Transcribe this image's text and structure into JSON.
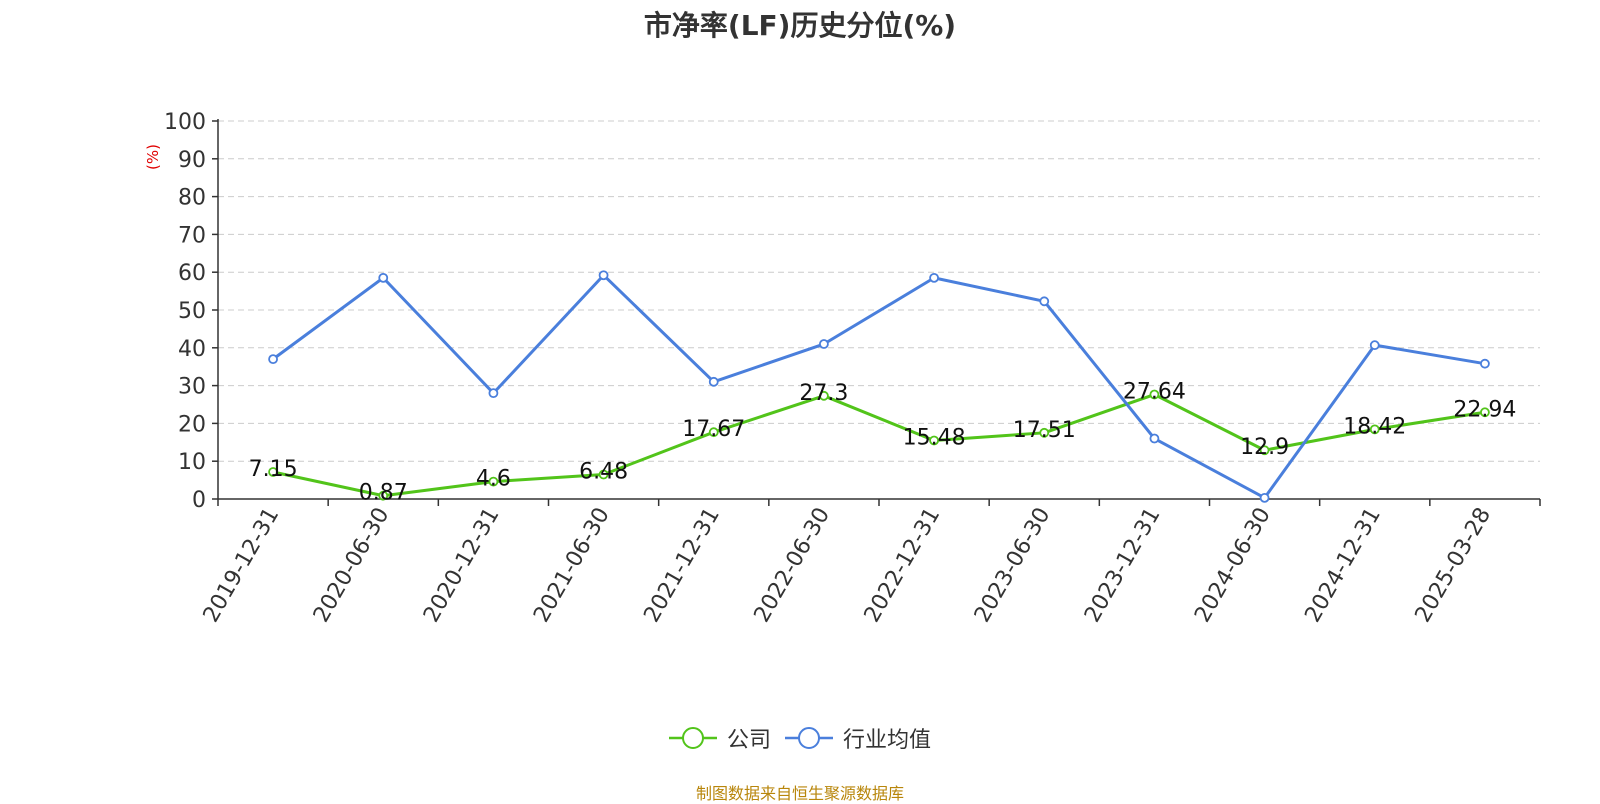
{
  "page": {
    "title": "市净率(LF)历史分位(%)",
    "source": "制图数据来自恒生聚源数据库"
  },
  "chart_data": {
    "type": "line",
    "title": "市净率(LF)历史分位(%)",
    "ylabel": "(%)",
    "xlabel": "",
    "ylim": [
      0,
      100
    ],
    "yticks": [
      0,
      10,
      20,
      30,
      40,
      50,
      60,
      70,
      80,
      90,
      100
    ],
    "grid": true,
    "legend_position": "bottom-center",
    "categories": [
      "2019-12-31",
      "2020-06-30",
      "2020-12-31",
      "2021-06-30",
      "2021-12-31",
      "2022-06-30",
      "2022-12-31",
      "2023-06-30",
      "2023-12-31",
      "2024-06-30",
      "2024-12-31",
      "2025-03-28"
    ],
    "series": [
      {
        "name": "公司",
        "color": "#52c41a",
        "values": [
          7.15,
          0.87,
          4.6,
          6.48,
          17.67,
          27.3,
          15.48,
          17.51,
          27.64,
          12.9,
          18.42,
          22.94
        ],
        "labels": [
          "7.15",
          "0.87",
          "4.6",
          "6.48",
          "17.67",
          "27.3",
          "15.48",
          "17.51",
          "27.64",
          "12.9",
          "18.42",
          "22.94"
        ]
      },
      {
        "name": "行业均值",
        "color": "#4a7fdc",
        "values": [
          37,
          58.5,
          28,
          59.2,
          31,
          41,
          58.5,
          52.3,
          16,
          0.3,
          40.7,
          35.8
        ]
      }
    ]
  }
}
